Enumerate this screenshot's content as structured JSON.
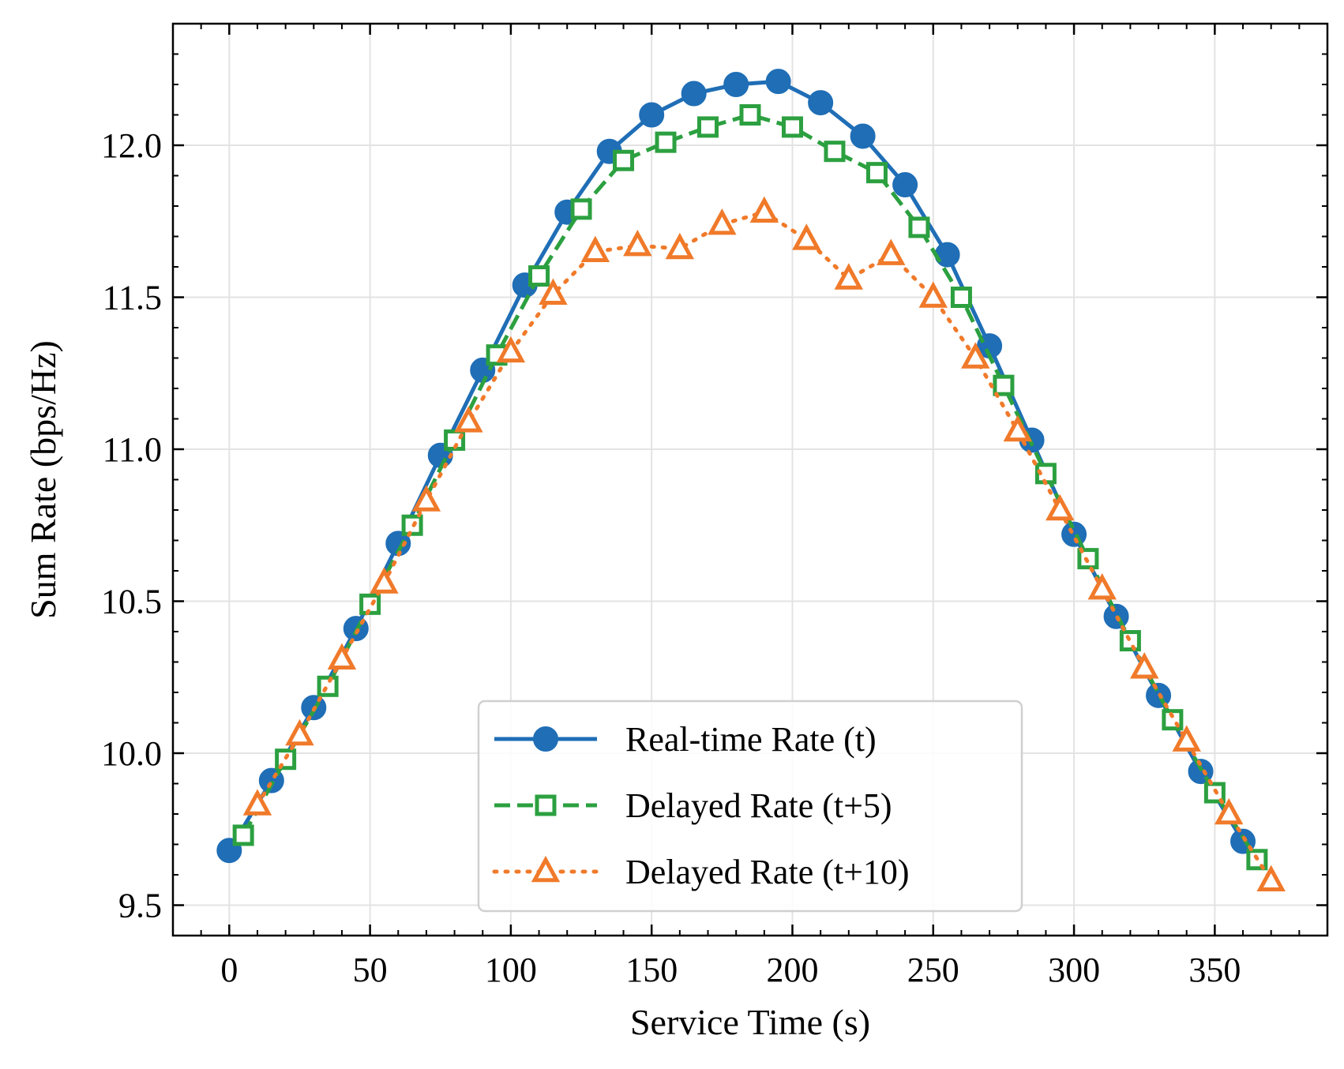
{
  "chart_data": {
    "type": "line",
    "xlabel": "Service Time (s)",
    "ylabel": "Sum Rate (bps/Hz)",
    "xlim": [
      -20,
      390
    ],
    "ylim": [
      9.4,
      12.4
    ],
    "x_ticks": [
      0,
      50,
      100,
      150,
      200,
      250,
      300,
      350
    ],
    "x_tick_labels": [
      "0",
      "50",
      "100",
      "150",
      "200",
      "250",
      "300",
      "350"
    ],
    "y_ticks": [
      9.5,
      10.0,
      10.5,
      11.0,
      11.5,
      12.0
    ],
    "y_tick_labels": [
      "9.5",
      "10.0",
      "10.5",
      "11.0",
      "11.5",
      "12.0"
    ],
    "grid": true,
    "legend_position": "bottom-center",
    "series": [
      {
        "name": "Real-time Rate (t)",
        "color": "#1f6eb6",
        "line_style": "solid",
        "marker": "circle",
        "x": [
          0,
          15,
          30,
          45,
          60,
          75,
          90,
          105,
          120,
          135,
          150,
          165,
          180,
          195,
          210,
          225,
          240,
          255,
          270,
          285,
          300,
          315,
          330,
          345,
          360
        ],
        "y": [
          9.68,
          9.91,
          10.15,
          10.41,
          10.69,
          10.98,
          11.26,
          11.54,
          11.78,
          11.98,
          12.1,
          12.17,
          12.2,
          12.21,
          12.14,
          12.03,
          11.87,
          11.64,
          11.34,
          11.03,
          10.72,
          10.45,
          10.19,
          9.94,
          9.71
        ]
      },
      {
        "name": "Delayed Rate (t+5)",
        "color": "#2ca040",
        "line_style": "dashed",
        "marker": "square",
        "x": [
          5,
          20,
          35,
          50,
          65,
          80,
          95,
          110,
          125,
          140,
          155,
          170,
          185,
          200,
          215,
          230,
          245,
          260,
          275,
          290,
          305,
          320,
          335,
          350,
          365
        ],
        "y": [
          9.73,
          9.98,
          10.22,
          10.49,
          10.75,
          11.03,
          11.31,
          11.57,
          11.79,
          11.95,
          12.01,
          12.06,
          12.1,
          12.06,
          11.98,
          11.91,
          11.73,
          11.5,
          11.21,
          10.92,
          10.64,
          10.37,
          10.11,
          9.87,
          9.65
        ]
      },
      {
        "name": "Delayed Rate (t+10)",
        "color": "#f07a2a",
        "line_style": "dotted",
        "marker": "triangle",
        "x": [
          10,
          25,
          40,
          55,
          70,
          85,
          100,
          115,
          130,
          145,
          160,
          175,
          190,
          205,
          220,
          235,
          250,
          265,
          280,
          295,
          310,
          325,
          340,
          355,
          370
        ],
        "y": [
          9.83,
          10.06,
          10.31,
          10.56,
          10.83,
          11.09,
          11.32,
          11.51,
          11.65,
          11.67,
          11.66,
          11.74,
          11.78,
          11.69,
          11.56,
          11.64,
          11.5,
          11.3,
          11.06,
          10.8,
          10.54,
          10.28,
          10.04,
          9.8,
          9.58
        ]
      }
    ]
  }
}
